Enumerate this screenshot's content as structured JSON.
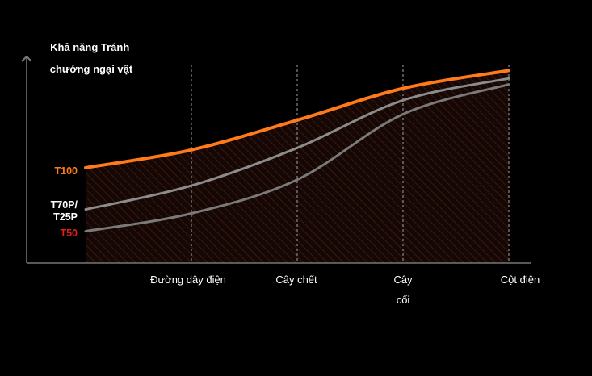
{
  "chart_data": {
    "type": "line",
    "ylabel": [
      "Khả năng Tránh",
      "chướng ngại vật"
    ],
    "xlabel": "",
    "categories": [
      {
        "lines": [
          "Đường dây điện"
        ]
      },
      {
        "lines": [
          "Cây chết"
        ]
      },
      {
        "lines": [
          "Cây",
          "cối"
        ]
      },
      {
        "lines": [
          "Cột điện"
        ]
      }
    ],
    "x": [
      0,
      1,
      2,
      3,
      4
    ],
    "xlim": [
      0,
      4
    ],
    "ylim": [
      0,
      100
    ],
    "shaded_region": "under top series",
    "grid": "vertical dashed lines at each category",
    "series": [
      {
        "name": "T100",
        "label_lines": [
          "T100"
        ],
        "color": "#ff7a1a",
        "label_color": "#ff7a1a",
        "values": [
          48,
          57,
          72,
          88,
          97
        ]
      },
      {
        "name": "T70P/T25P",
        "label_lines": [
          "T70P/",
          "T25P"
        ],
        "color": "#8c8c8c",
        "label_color": "#ffffff",
        "values": [
          27,
          39,
          58,
          82,
          93
        ]
      },
      {
        "name": "T50",
        "label_lines": [
          "T50"
        ],
        "color": "#7a7a7a",
        "label_color": "#e0201b",
        "values": [
          16,
          25,
          42,
          75,
          90
        ]
      }
    ]
  }
}
